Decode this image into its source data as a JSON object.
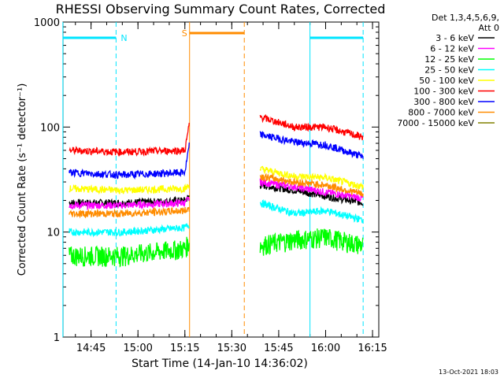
{
  "chart_data": {
    "type": "line",
    "title": "RHESSI Observing Summary Count Rates, Corrected",
    "xlabel": "Start Time (14-Jan-10 14:36:02)",
    "ylabel": "Corrected Count Rate (s⁻¹ detector⁻¹)",
    "yscale": "log",
    "ylim": [
      1,
      1000
    ],
    "x_ticks": [
      "14:45",
      "15:00",
      "15:15",
      "15:30",
      "15:45",
      "16:00",
      "16:15"
    ],
    "y_ticks": [
      "1",
      "10",
      "100",
      "1000"
    ],
    "xlim": [
      "14:36:02",
      "16:17"
    ],
    "legend_header": [
      "Det 1,3,4,5,6,9,",
      "Att 0"
    ],
    "legend_position": "right",
    "footer_date": "13-Oct-2021 18:03",
    "series": [
      {
        "name": "3 - 6 keV",
        "color": "#000000",
        "x": [
          "14:38",
          "14:55",
          "15:15",
          "15:16:30",
          "15:39",
          "15:50",
          "16:00",
          "16:12"
        ],
        "y": [
          19,
          19,
          20,
          22,
          28,
          25,
          22,
          19
        ]
      },
      {
        "name": "6 - 12 keV",
        "color": "#ff00ff",
        "x": [
          "14:38",
          "14:55",
          "15:15",
          "15:16:30",
          "15:39",
          "15:50",
          "16:00",
          "16:12"
        ],
        "y": [
          18,
          18,
          19,
          21,
          30,
          27,
          24,
          21
        ]
      },
      {
        "name": "12 - 25 keV",
        "color": "#00ff00",
        "x": [
          "14:38",
          "14:55",
          "15:15",
          "15:16:30",
          "15:39",
          "15:50",
          "16:00",
          "16:12"
        ],
        "y": [
          6,
          6,
          7,
          8,
          7.5,
          8.5,
          9,
          7.5
        ]
      },
      {
        "name": "25 - 50 keV",
        "color": "#00ffff",
        "x": [
          "14:38",
          "14:55",
          "15:15",
          "15:16:30",
          "15:39",
          "15:50",
          "16:00",
          "16:12"
        ],
        "y": [
          10,
          10,
          11,
          12,
          19,
          15,
          16,
          13
        ]
      },
      {
        "name": "50 - 100 keV",
        "color": "#ffff00",
        "x": [
          "14:38",
          "14:55",
          "15:15",
          "15:16:30",
          "15:39",
          "15:50",
          "16:00",
          "16:12"
        ],
        "y": [
          26,
          25,
          26,
          28,
          40,
          34,
          33,
          27
        ]
      },
      {
        "name": "100 - 300 keV",
        "color": "#ff0000",
        "x": [
          "14:38",
          "14:55",
          "15:15",
          "15:16:30",
          "15:39",
          "15:50",
          "16:00",
          "16:12"
        ],
        "y": [
          60,
          58,
          60,
          110,
          125,
          100,
          100,
          80
        ]
      },
      {
        "name": "300 - 800 keV",
        "color": "#0000ff",
        "x": [
          "14:38",
          "14:55",
          "15:15",
          "15:16:30",
          "15:39",
          "15:50",
          "16:00",
          "16:12"
        ],
        "y": [
          37,
          35,
          37,
          70,
          85,
          72,
          68,
          52
        ]
      },
      {
        "name": "800 - 7000 keV",
        "color": "#ff8c00",
        "x": [
          "14:38",
          "14:55",
          "15:15",
          "15:16:30",
          "15:39",
          "15:50",
          "16:00",
          "16:12"
        ],
        "y": [
          15,
          15,
          16,
          17,
          34,
          30,
          28,
          23
        ]
      },
      {
        "name": "7000 - 15000 keV",
        "color": "#808000",
        "x": [],
        "y": []
      }
    ],
    "annotations": [
      {
        "label": "N",
        "color": "#00e5ff",
        "start": "14:36",
        "end": "14:53"
      },
      {
        "label": "S",
        "color": "#ff8c00",
        "start": "15:16:30",
        "end": "15:34"
      },
      {
        "label": "",
        "color": "#00e5ff",
        "start": "15:55",
        "end": "16:12"
      }
    ],
    "data_gap": [
      "15:16:30",
      "15:39"
    ]
  }
}
